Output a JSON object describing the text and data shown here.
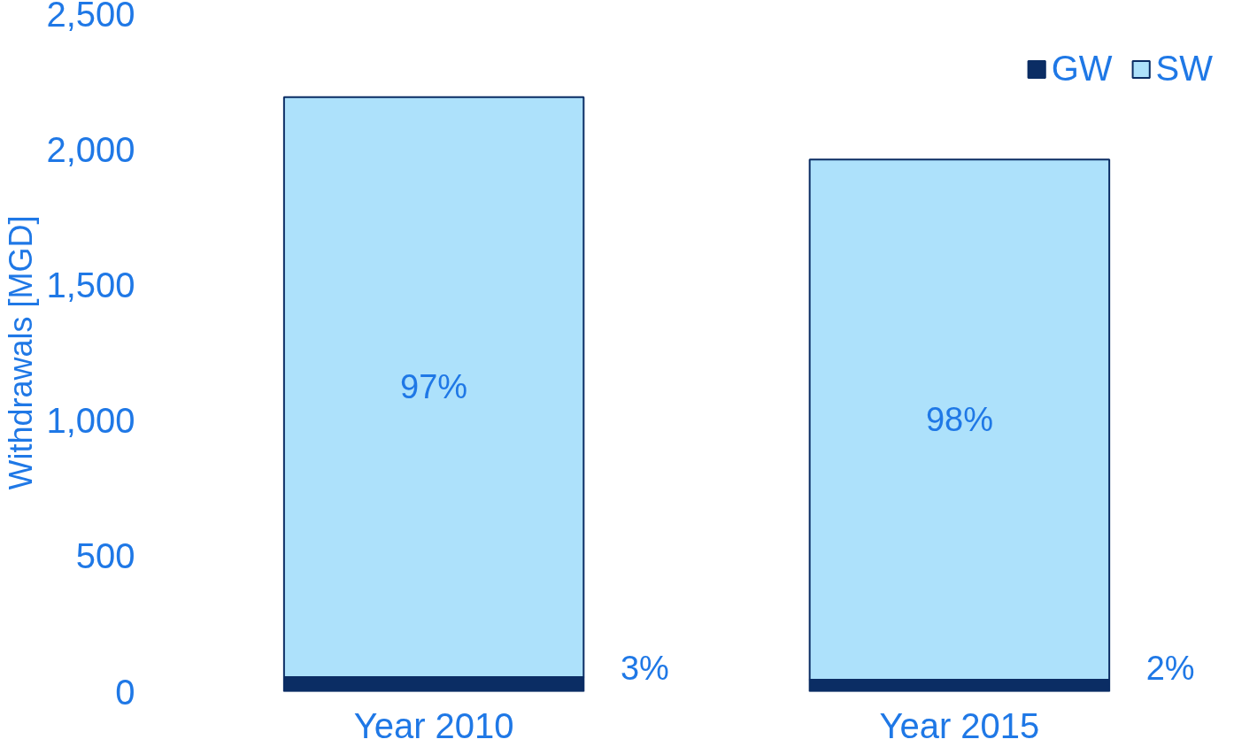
{
  "chart_data": {
    "type": "bar",
    "stacked": true,
    "ylabel": "Withdrawals [MGD]",
    "categories": [
      "Year 2010",
      "Year 2015"
    ],
    "series": [
      {
        "name": "GW",
        "color": "#0b2d64",
        "values": [
          54,
          44
        ]
      },
      {
        "name": "SW",
        "color": "#ade1fb",
        "values": [
          2138,
          1918
        ]
      }
    ],
    "annotations": [
      "3%",
      "97%",
      "2%",
      "98%"
    ],
    "ylim": [
      0,
      2500
    ],
    "yticks": [
      0,
      {
        "value": 500,
        "label": "500"
      },
      {
        "value": 1000,
        "label": "1,000"
      },
      {
        "value": 1500,
        "label": "1,500"
      },
      {
        "value": 2000,
        "label": "2,000"
      },
      {
        "value": 2500,
        "label": "2,500"
      }
    ],
    "grid": false,
    "legend": "top right"
  }
}
